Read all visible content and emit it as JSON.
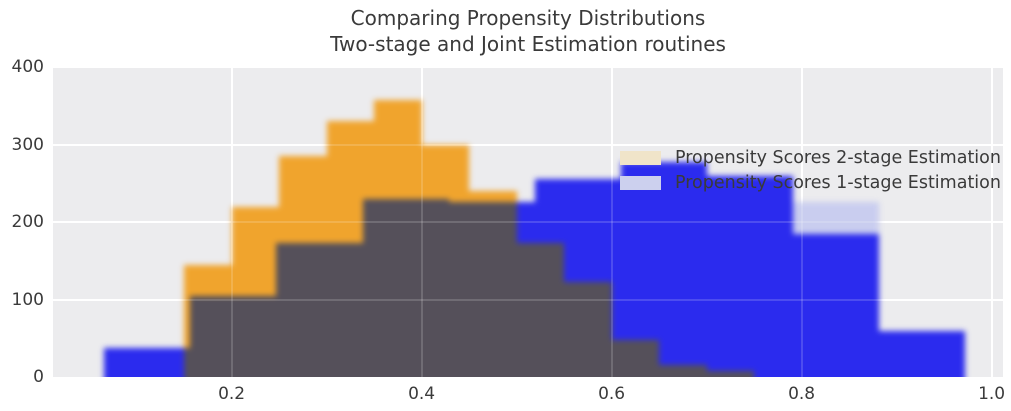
{
  "title": {
    "line1": "Comparing Propensity Distributions",
    "line2": "Two-stage and Joint Estimation routines"
  },
  "chart_data": {
    "type": "histogram",
    "title": "Comparing Propensity Distributions — Two-stage and Joint Estimation routines",
    "xlim": [
      0.012,
      1.012
    ],
    "ylim": [
      0,
      400
    ],
    "grid": true,
    "legend_position": "upper right",
    "plot_bg": "#ececee",
    "grid_color": "#ffffff",
    "overlap_color": "#55505a",
    "x_ticks": {
      "values": [
        0.2,
        0.4,
        0.6,
        0.8,
        1.0
      ],
      "labels": [
        "0.2",
        "0.4",
        "0.6",
        "0.8",
        "1.0"
      ]
    },
    "y_ticks": {
      "values": [
        0,
        100,
        200,
        300,
        400
      ],
      "labels": [
        "0",
        "100",
        "200",
        "300",
        "400"
      ]
    },
    "series": [
      {
        "name": "Propensity Scores 2-stage Estimation",
        "color": "#f0a42d",
        "legend_swatch": "#f0e4c9",
        "bin_start": 0.15,
        "bin_width": 0.05,
        "counts": [
          145,
          220,
          285,
          330,
          358,
          300,
          240,
          173,
          122,
          48,
          15,
          8
        ]
      },
      {
        "name": "Propensity Scores 1-stage Estimation",
        "color": "#2b2bee",
        "legend_swatch": "#ccd0ee",
        "bin_start": 0.066,
        "bin_width": 0.0906,
        "counts": [
          37,
          105,
          173,
          230,
          226,
          255,
          277,
          260,
          185,
          60
        ],
        "shadow_caps": [
          {
            "bin_index": 8,
            "value": 226,
            "color": "#c9cdef"
          }
        ]
      }
    ]
  }
}
